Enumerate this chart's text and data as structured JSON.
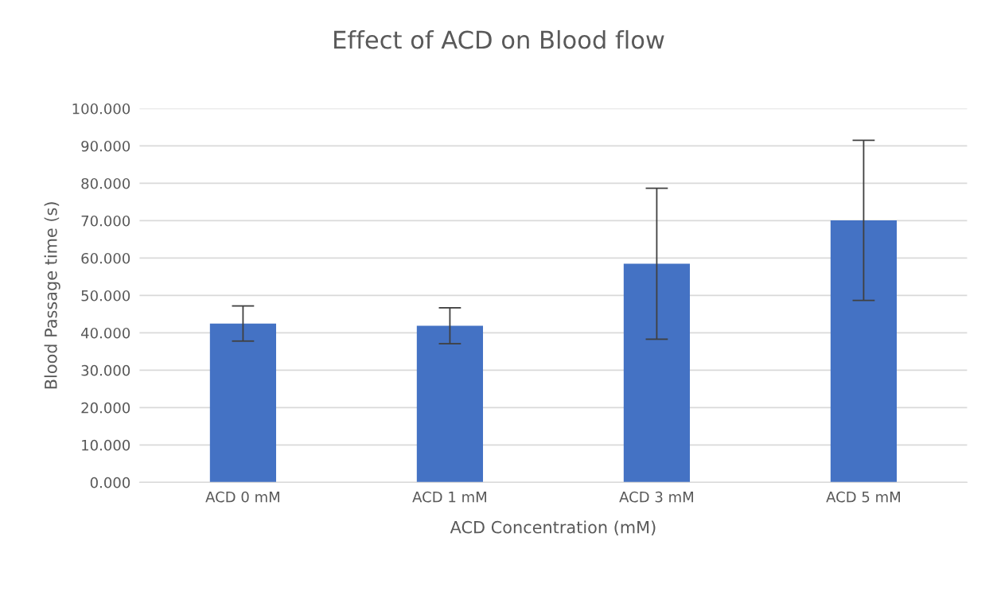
{
  "chart_data": {
    "type": "bar",
    "title": "Effect of ACD on Blood flow",
    "xlabel": "ACD Concentration (mM)",
    "ylabel": "Blood Passage time (s)",
    "categories": [
      "ACD 0 mM",
      "ACD 1 mM",
      "ACD 3 mM",
      "ACD 5 mM"
    ],
    "values": [
      42.5,
      41.9,
      58.5,
      70.1
    ],
    "errors": [
      4.7,
      4.8,
      20.2,
      21.4
    ],
    "color": "#4472c4",
    "ylim": [
      0,
      100
    ],
    "yticks": [
      {
        "value": 0,
        "label": "0.000"
      },
      {
        "value": 10,
        "label": "10.000"
      },
      {
        "value": 20,
        "label": "20.000"
      },
      {
        "value": 30,
        "label": "30.000"
      },
      {
        "value": 40,
        "label": "40.000"
      },
      {
        "value": 50,
        "label": "50.000"
      },
      {
        "value": 60,
        "label": "60.000"
      },
      {
        "value": 70,
        "label": "70.000"
      },
      {
        "value": 80,
        "label": "80.000"
      },
      {
        "value": 90,
        "label": "90.000"
      },
      {
        "value": 100,
        "label": "100.000"
      }
    ],
    "grid": "y",
    "legend": false
  }
}
